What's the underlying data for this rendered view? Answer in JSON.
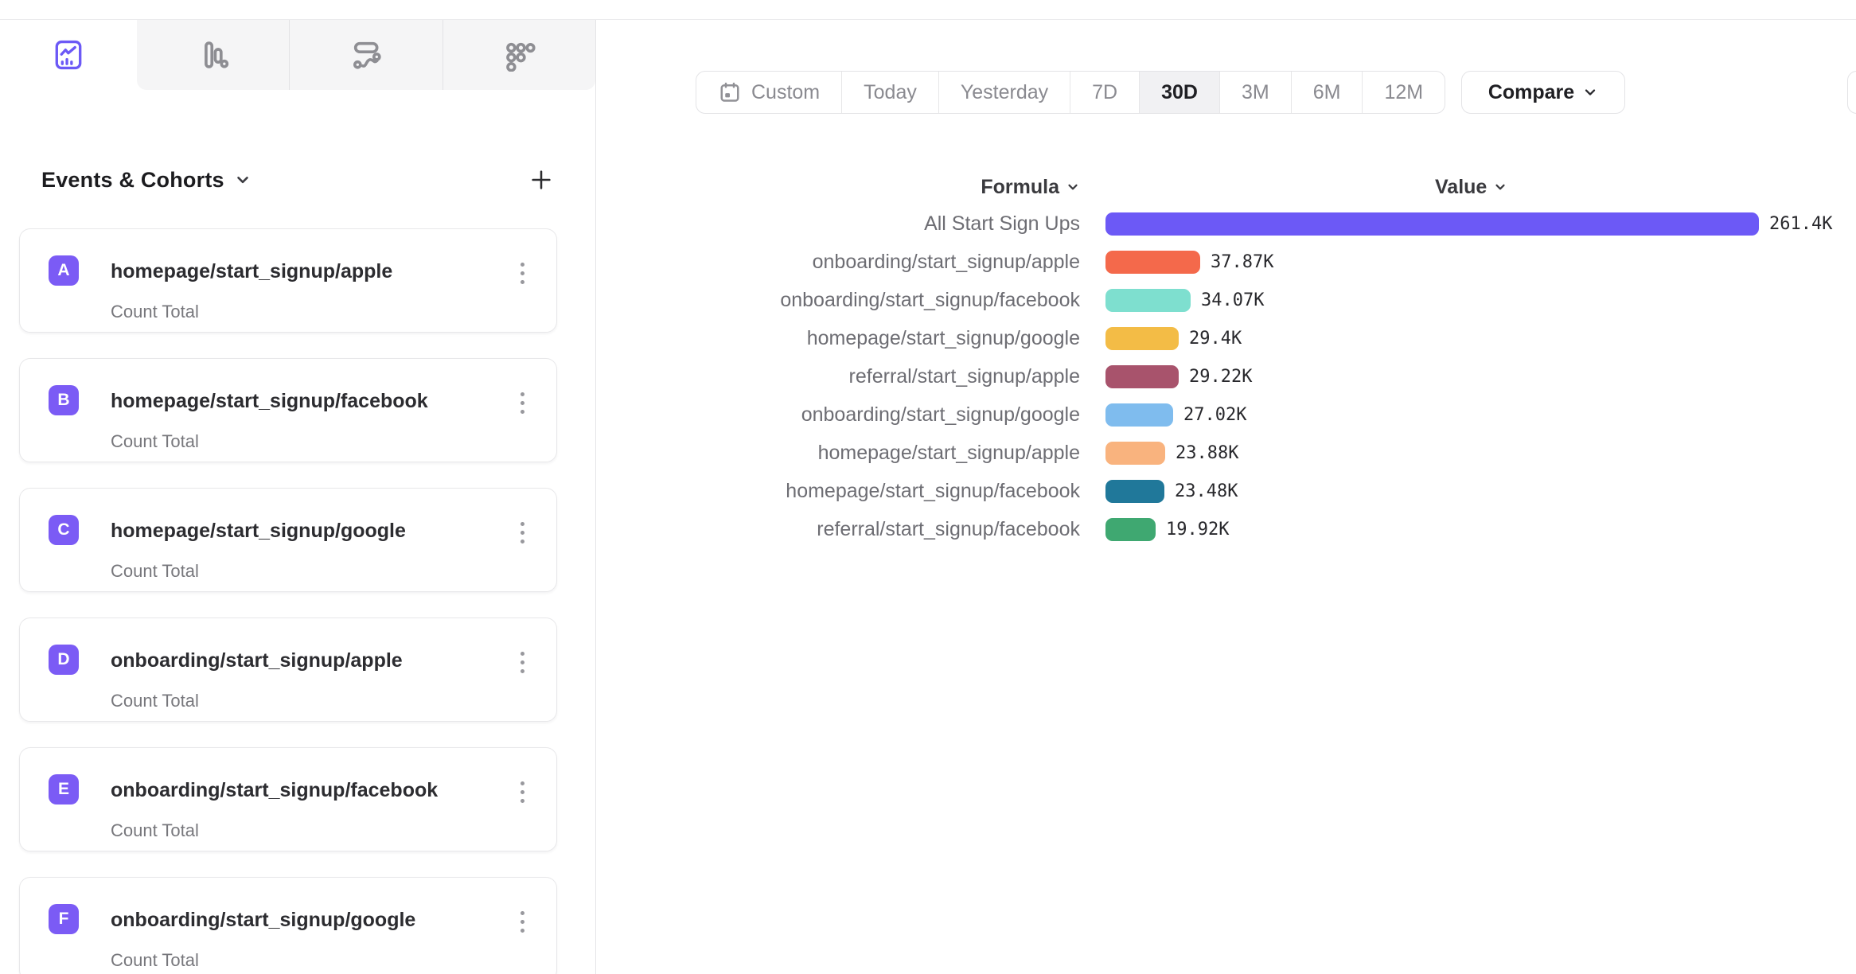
{
  "tabs": [
    {
      "icon": "insights-line-chart-icon",
      "active": true
    },
    {
      "icon": "funnel-bars-icon",
      "active": false
    },
    {
      "icon": "flows-icon",
      "active": false
    },
    {
      "icon": "retention-dots-icon",
      "active": false
    }
  ],
  "sidebar": {
    "title": "Events & Cohorts",
    "metric_label": "Count Total",
    "cards": [
      {
        "badge": "A",
        "name": "homepage/start_signup/apple",
        "metric": "Count Total"
      },
      {
        "badge": "B",
        "name": "homepage/start_signup/facebook",
        "metric": "Count Total"
      },
      {
        "badge": "C",
        "name": "homepage/start_signup/google",
        "metric": "Count Total"
      },
      {
        "badge": "D",
        "name": "onboarding/start_signup/apple",
        "metric": "Count Total"
      },
      {
        "badge": "E",
        "name": "onboarding/start_signup/facebook",
        "metric": "Count Total"
      },
      {
        "badge": "F",
        "name": "onboarding/start_signup/google",
        "metric": "Count Total"
      }
    ]
  },
  "toolbar": {
    "ranges": [
      "Custom",
      "Today",
      "Yesterday",
      "7D",
      "30D",
      "3M",
      "6M",
      "12M"
    ],
    "selected_range": "30D",
    "compare_label": "Compare"
  },
  "chart_data": {
    "type": "bar",
    "orientation": "horizontal",
    "column_headers": {
      "formula": "Formula",
      "value": "Value"
    },
    "categories": [
      "All Start Sign Ups",
      "onboarding/start_signup/apple",
      "onboarding/start_signup/facebook",
      "homepage/start_signup/google",
      "referral/start_signup/apple",
      "onboarding/start_signup/google",
      "homepage/start_signup/apple",
      "homepage/start_signup/facebook",
      "referral/start_signup/facebook"
    ],
    "values": [
      261400,
      37870,
      34070,
      29400,
      29220,
      27020,
      23880,
      23480,
      19920
    ],
    "value_labels": [
      "261.4K",
      "37.87K",
      "34.07K",
      "29.4K",
      "29.22K",
      "27.02K",
      "23.88K",
      "23.48K",
      "19.92K"
    ],
    "bar_colors": [
      "#6C59F6",
      "#F4694B",
      "#7EDFCF",
      "#F3BC46",
      "#A8536C",
      "#7FBCEE",
      "#F9B37E",
      "#20789A",
      "#3FA871"
    ],
    "xlim": [
      0,
      261400
    ],
    "grid": false,
    "legend": "none"
  },
  "colors": {
    "accent": "#6C59F6",
    "badge": "#7B5BF5",
    "selected_range_bg": "#f1f1f3"
  }
}
